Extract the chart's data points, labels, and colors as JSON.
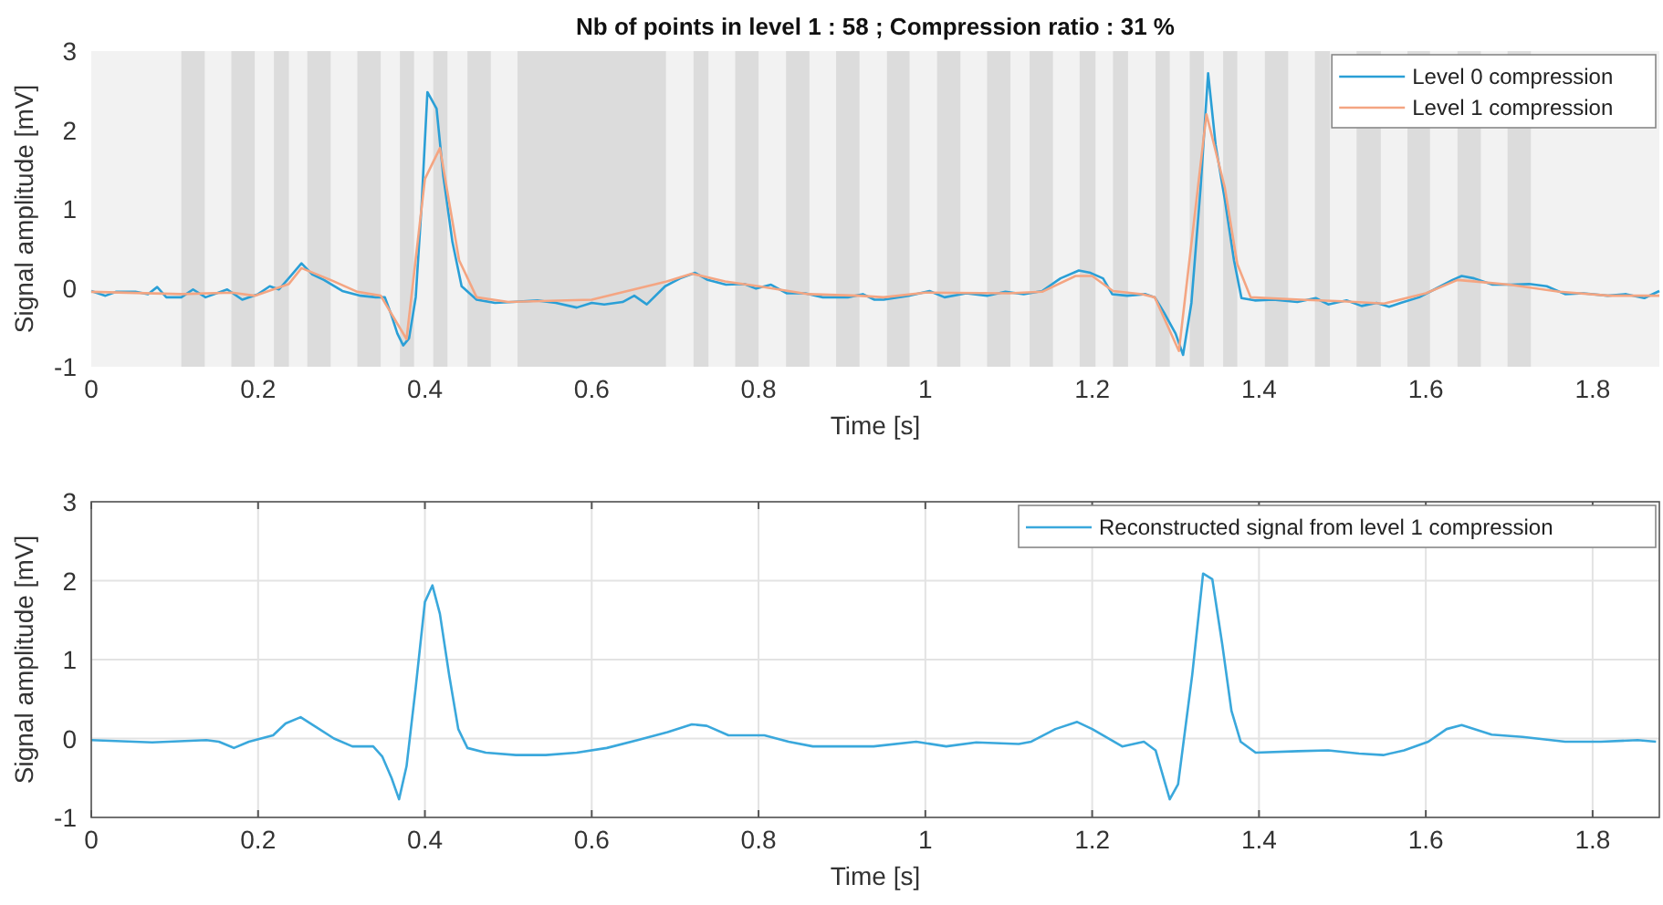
{
  "chart_data": [
    {
      "type": "line",
      "title": "Nb of points in level 1 : 58 ; Compression ratio : 31 %",
      "xlabel": "Time [s]",
      "ylabel": "Signal amplitude [mV]",
      "xlim": [
        0,
        1.88
      ],
      "ylim": [
        -1,
        3
      ],
      "xticks": [
        0,
        0.2,
        0.4,
        0.6,
        0.8,
        1,
        1.2,
        1.4,
        1.6,
        1.8
      ],
      "yticks": [
        -1,
        0,
        1,
        2,
        3
      ],
      "grid": false,
      "legend": "top right",
      "bands": [
        {
          "axis": "x",
          "from": 0.108,
          "to": 0.136,
          "color": "#dcdcdc"
        },
        {
          "axis": "x",
          "from": 0.168,
          "to": 0.196,
          "color": "#dcdcdc"
        },
        {
          "axis": "x",
          "from": 0.219,
          "to": 0.237,
          "color": "#dcdcdc"
        },
        {
          "axis": "x",
          "from": 0.259,
          "to": 0.287,
          "color": "#dcdcdc"
        },
        {
          "axis": "x",
          "from": 0.319,
          "to": 0.347,
          "color": "#dcdcdc"
        },
        {
          "axis": "x",
          "from": 0.37,
          "to": 0.387,
          "color": "#dcdcdc"
        },
        {
          "axis": "x",
          "from": 0.41,
          "to": 0.427,
          "color": "#dcdcdc"
        },
        {
          "axis": "x",
          "from": 0.451,
          "to": 0.479,
          "color": "#dcdcdc"
        },
        {
          "axis": "x",
          "from": 0.511,
          "to": 0.689,
          "color": "#dcdcdc"
        },
        {
          "axis": "x",
          "from": 0.722,
          "to": 0.74,
          "color": "#dcdcdc"
        },
        {
          "axis": "x",
          "from": 0.772,
          "to": 0.8,
          "color": "#dcdcdc"
        },
        {
          "axis": "x",
          "from": 0.833,
          "to": 0.861,
          "color": "#dcdcdc"
        },
        {
          "axis": "x",
          "from": 0.893,
          "to": 0.921,
          "color": "#dcdcdc"
        },
        {
          "axis": "x",
          "from": 0.954,
          "to": 0.981,
          "color": "#dcdcdc"
        },
        {
          "axis": "x",
          "from": 1.014,
          "to": 1.042,
          "color": "#dcdcdc"
        },
        {
          "axis": "x",
          "from": 1.074,
          "to": 1.102,
          "color": "#dcdcdc"
        },
        {
          "axis": "x",
          "from": 1.125,
          "to": 1.153,
          "color": "#dcdcdc"
        },
        {
          "axis": "x",
          "from": 1.185,
          "to": 1.204,
          "color": "#dcdcdc"
        },
        {
          "axis": "x",
          "from": 1.225,
          "to": 1.243,
          "color": "#dcdcdc"
        },
        {
          "axis": "x",
          "from": 1.276,
          "to": 1.293,
          "color": "#dcdcdc"
        },
        {
          "axis": "x",
          "from": 1.317,
          "to": 1.334,
          "color": "#dcdcdc"
        },
        {
          "axis": "x",
          "from": 1.357,
          "to": 1.374,
          "color": "#dcdcdc"
        },
        {
          "axis": "x",
          "from": 1.407,
          "to": 1.435,
          "color": "#dcdcdc"
        },
        {
          "axis": "x",
          "from": 1.467,
          "to": 1.485,
          "color": "#dcdcdc"
        },
        {
          "axis": "x",
          "from": 1.517,
          "to": 1.546,
          "color": "#dcdcdc"
        },
        {
          "axis": "x",
          "from": 1.578,
          "to": 1.605,
          "color": "#dcdcdc"
        },
        {
          "axis": "x",
          "from": 1.638,
          "to": 1.666,
          "color": "#dcdcdc"
        },
        {
          "axis": "x",
          "from": 1.698,
          "to": 1.726,
          "color": "#dcdcdc"
        }
      ],
      "series": [
        {
          "name": "Level 0 compression",
          "color": "#2a9fd6",
          "x": [
            0,
            0.017,
            0.03,
            0.053,
            0.068,
            0.079,
            0.09,
            0.108,
            0.122,
            0.137,
            0.163,
            0.181,
            0.2,
            0.214,
            0.225,
            0.239,
            0.252,
            0.265,
            0.279,
            0.301,
            0.323,
            0.341,
            0.352,
            0.36,
            0.367,
            0.374,
            0.381,
            0.389,
            0.396,
            0.403,
            0.414,
            0.422,
            0.433,
            0.444,
            0.462,
            0.484,
            0.505,
            0.535,
            0.557,
            0.582,
            0.6,
            0.615,
            0.637,
            0.651,
            0.666,
            0.688,
            0.706,
            0.724,
            0.739,
            0.761,
            0.783,
            0.797,
            0.815,
            0.834,
            0.856,
            0.877,
            0.907,
            0.925,
            0.939,
            0.95,
            0.98,
            1.005,
            1.023,
            1.049,
            1.074,
            1.096,
            1.118,
            1.14,
            1.162,
            1.184,
            1.198,
            1.213,
            1.224,
            1.242,
            1.264,
            1.275,
            1.286,
            1.3,
            1.309,
            1.319,
            1.33,
            1.339,
            1.348,
            1.359,
            1.37,
            1.379,
            1.395,
            1.417,
            1.446,
            1.468,
            1.483,
            1.505,
            1.523,
            1.541,
            1.556,
            1.57,
            1.592,
            1.614,
            1.632,
            1.643,
            1.658,
            1.68,
            1.702,
            1.724,
            1.745,
            1.767,
            1.789,
            1.818,
            1.84,
            1.862,
            1.88
          ],
          "values": [
            -0.04,
            -0.1,
            -0.05,
            -0.05,
            -0.08,
            0.01,
            -0.12,
            -0.12,
            -0.02,
            -0.12,
            -0.02,
            -0.15,
            -0.08,
            0.02,
            -0.02,
            0.15,
            0.31,
            0.17,
            0.1,
            -0.04,
            -0.1,
            -0.12,
            -0.12,
            -0.35,
            -0.58,
            -0.73,
            -0.64,
            -0.12,
            1.04,
            2.48,
            2.27,
            1.42,
            0.58,
            0.02,
            -0.15,
            -0.19,
            -0.18,
            -0.16,
            -0.19,
            -0.25,
            -0.19,
            -0.21,
            -0.18,
            -0.1,
            -0.21,
            0.02,
            0.12,
            0.19,
            0.1,
            0.04,
            0.05,
            -0.01,
            0.04,
            -0.07,
            -0.07,
            -0.12,
            -0.12,
            -0.08,
            -0.15,
            -0.15,
            -0.1,
            -0.04,
            -0.12,
            -0.07,
            -0.1,
            -0.05,
            -0.08,
            -0.04,
            0.12,
            0.22,
            0.19,
            0.12,
            -0.08,
            -0.1,
            -0.08,
            -0.12,
            -0.31,
            -0.58,
            -0.85,
            -0.19,
            1.27,
            2.72,
            1.81,
            1.12,
            0.35,
            -0.13,
            -0.16,
            -0.15,
            -0.18,
            -0.13,
            -0.21,
            -0.16,
            -0.23,
            -0.19,
            -0.24,
            -0.19,
            -0.12,
            0,
            0.1,
            0.15,
            0.12,
            0.04,
            0.04,
            0.05,
            0.02,
            -0.08,
            -0.07,
            -0.1,
            -0.08,
            -0.13,
            -0.04
          ]
        },
        {
          "name": "Level 1 compression",
          "color": "#f4a582",
          "x": [
            0,
            0.108,
            0.168,
            0.196,
            0.237,
            0.252,
            0.287,
            0.319,
            0.347,
            0.378,
            0.4,
            0.418,
            0.441,
            0.462,
            0.5,
            0.6,
            0.69,
            0.72,
            0.76,
            0.8,
            0.86,
            0.92,
            0.95,
            1,
            1.1,
            1.14,
            1.18,
            1.2,
            1.225,
            1.26,
            1.275,
            1.304,
            1.337,
            1.359,
            1.374,
            1.39,
            1.45,
            1.5,
            1.55,
            1.6,
            1.638,
            1.66,
            1.7,
            1.76,
            1.82,
            1.88
          ],
          "values": [
            -0.05,
            -0.08,
            -0.06,
            -0.1,
            0.05,
            0.25,
            0.1,
            -0.05,
            -0.1,
            -0.65,
            1.38,
            1.77,
            0.35,
            -0.12,
            -0.18,
            -0.15,
            0.08,
            0.18,
            0.08,
            0.02,
            -0.08,
            -0.1,
            -0.12,
            -0.06,
            -0.07,
            -0.05,
            0.15,
            0.15,
            -0.04,
            -0.08,
            -0.12,
            -0.8,
            2.2,
            1.27,
            0.3,
            -0.12,
            -0.15,
            -0.17,
            -0.2,
            -0.07,
            0.1,
            0.08,
            0.04,
            -0.05,
            -0.1,
            -0.1
          ]
        }
      ]
    },
    {
      "type": "line",
      "xlabel": "Time [s]",
      "ylabel": "Signal amplitude [mV]",
      "xlim": [
        0,
        1.88
      ],
      "ylim": [
        -1,
        3
      ],
      "xticks": [
        0,
        0.2,
        0.4,
        0.6,
        0.8,
        1,
        1.2,
        1.4,
        1.6,
        1.8
      ],
      "yticks": [
        -1,
        0,
        1,
        2,
        3
      ],
      "grid": true,
      "legend": "top right",
      "series": [
        {
          "name": "Reconstructed signal from level 1 compression",
          "color": "#3aa8dc",
          "x": [
            0,
            0.073,
            0.138,
            0.153,
            0.171,
            0.189,
            0.218,
            0.233,
            0.251,
            0.269,
            0.291,
            0.313,
            0.338,
            0.349,
            0.36,
            0.369,
            0.378,
            0.389,
            0.4,
            0.409,
            0.418,
            0.429,
            0.44,
            0.451,
            0.473,
            0.509,
            0.545,
            0.582,
            0.618,
            0.655,
            0.691,
            0.72,
            0.738,
            0.764,
            0.807,
            0.836,
            0.865,
            0.909,
            0.938,
            0.989,
            1.025,
            1.061,
            1.112,
            1.127,
            1.156,
            1.182,
            1.2,
            1.236,
            1.262,
            1.276,
            1.293,
            1.303,
            1.32,
            1.333,
            1.344,
            1.356,
            1.367,
            1.378,
            1.396,
            1.447,
            1.483,
            1.52,
            1.549,
            1.574,
            1.603,
            1.625,
            1.643,
            1.679,
            1.716,
            1.767,
            1.81,
            1.854,
            1.876
          ],
          "values": [
            -0.02,
            -0.05,
            -0.02,
            -0.04,
            -0.12,
            -0.04,
            0.04,
            0.19,
            0.27,
            0.15,
            0,
            -0.1,
            -0.1,
            -0.23,
            -0.5,
            -0.77,
            -0.35,
            0.65,
            1.73,
            1.94,
            1.58,
            0.81,
            0.12,
            -0.12,
            -0.18,
            -0.21,
            -0.21,
            -0.18,
            -0.12,
            -0.02,
            0.08,
            0.18,
            0.16,
            0.04,
            0.04,
            -0.04,
            -0.1,
            -0.1,
            -0.1,
            -0.04,
            -0.1,
            -0.05,
            -0.07,
            -0.04,
            0.12,
            0.21,
            0.12,
            -0.1,
            -0.04,
            -0.15,
            -0.77,
            -0.58,
            0.81,
            2.09,
            2.02,
            1.19,
            0.35,
            -0.04,
            -0.18,
            -0.16,
            -0.15,
            -0.19,
            -0.21,
            -0.15,
            -0.04,
            0.12,
            0.17,
            0.05,
            0.02,
            -0.04,
            -0.04,
            -0.02,
            -0.04
          ]
        }
      ]
    }
  ]
}
